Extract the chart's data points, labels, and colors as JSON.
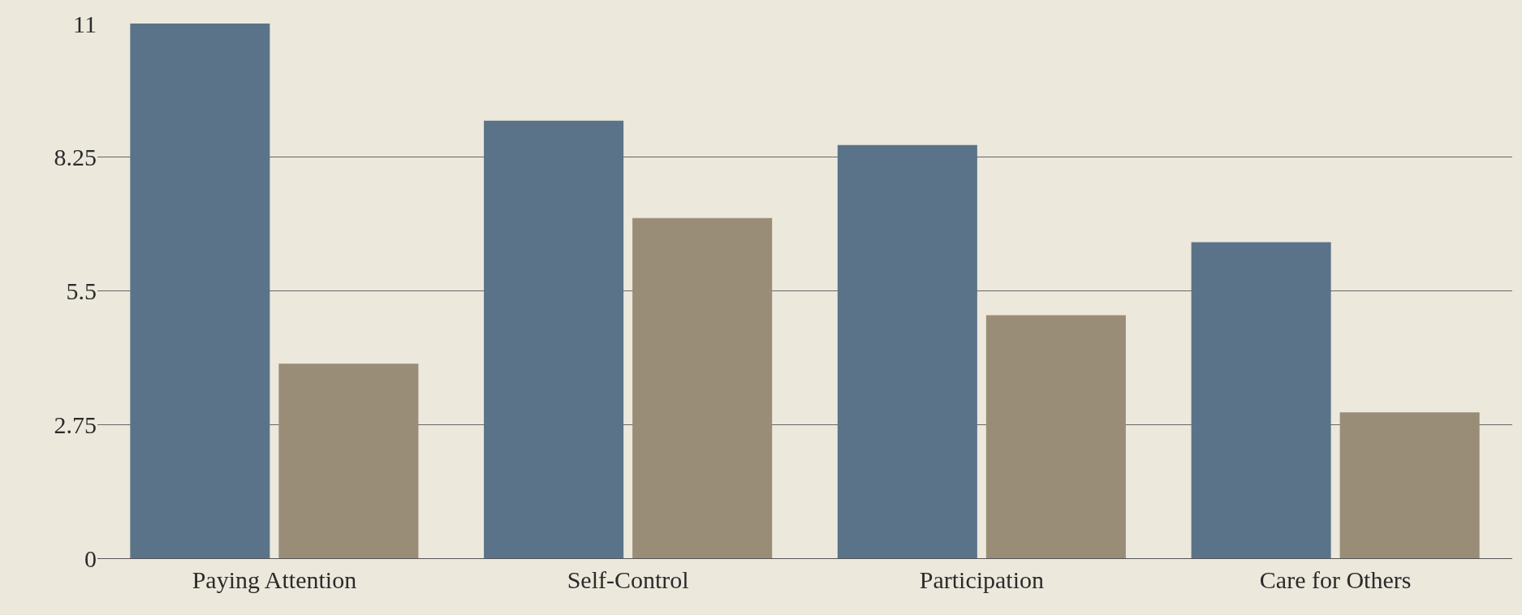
{
  "chart_data": {
    "type": "bar",
    "categories": [
      "Paying Attention",
      "Self-Control",
      "Participation",
      "Care for Others"
    ],
    "series": [
      {
        "color": "#5a7389",
        "values": [
          11,
          9,
          8.5,
          6.5
        ]
      },
      {
        "color": "#9a8d78",
        "values": [
          4,
          7,
          5,
          3
        ]
      }
    ],
    "ylim": [
      0,
      11
    ],
    "yticks": [
      0,
      2.75,
      5.5,
      8.25,
      11
    ],
    "grid": "y"
  }
}
